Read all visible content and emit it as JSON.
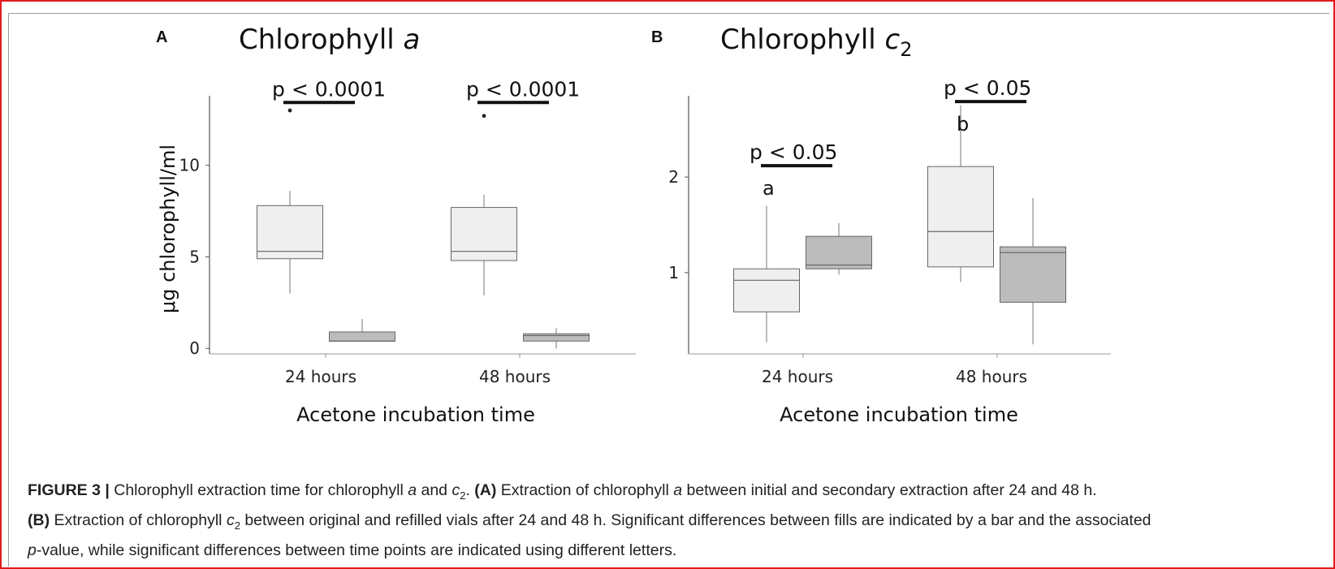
{
  "chart_data": [
    {
      "type": "box",
      "panel_label": "A",
      "title_prefix": "Chlorophyll ",
      "title_italic": "a",
      "title_sub": "",
      "xlabel": "Acetone incubation time",
      "ylabel": "μg chlorophyll/ml",
      "categories": [
        "24 hours",
        "48 hours"
      ],
      "yticks": [
        0,
        5,
        10
      ],
      "ylim": [
        -0.3,
        13.8
      ],
      "series": [
        {
          "name": "",
          "color": "#efefef",
          "boxes": [
            {
              "category": "24 hours",
              "whisker_low": 3.0,
              "q1": 4.9,
              "median": 5.3,
              "q3": 7.8,
              "whisker_high": 8.6,
              "outliers": [
                13.0
              ]
            },
            {
              "category": "48 hours",
              "whisker_low": 2.9,
              "q1": 4.8,
              "median": 5.3,
              "q3": 7.7,
              "whisker_high": 8.4,
              "outliers": [
                12.7
              ]
            }
          ]
        },
        {
          "name": "",
          "color": "#bcbcbc",
          "boxes": [
            {
              "category": "24 hours",
              "whisker_low": 0.4,
              "q1": 0.4,
              "median": 0.4,
              "q3": 0.9,
              "whisker_high": 1.6,
              "outliers": []
            },
            {
              "category": "48 hours",
              "whisker_low": 0.0,
              "q1": 0.4,
              "median": 0.7,
              "q3": 0.8,
              "whisker_high": 1.1,
              "outliers": []
            }
          ]
        }
      ],
      "annotations": [
        {
          "category": "24 hours",
          "text": "p < 0.0001",
          "value": 13.7,
          "letter": ""
        },
        {
          "category": "48 hours",
          "text": "p < 0.0001",
          "value": 13.7,
          "letter": ""
        }
      ]
    },
    {
      "type": "box",
      "panel_label": "B",
      "title_prefix": "Chlorophyll ",
      "title_italic": "c",
      "title_sub": "2",
      "xlabel": "Acetone incubation time",
      "ylabel": "",
      "categories": [
        "24 hours",
        "48 hours"
      ],
      "yticks": [
        1,
        2
      ],
      "ylim": [
        0.15,
        2.85
      ],
      "series": [
        {
          "name": "",
          "color": "#efefef",
          "boxes": [
            {
              "category": "24 hours",
              "whisker_low": 0.27,
              "q1": 0.59,
              "median": 0.92,
              "q3": 1.04,
              "whisker_high": 1.7,
              "outliers": []
            },
            {
              "category": "48 hours",
              "whisker_low": 0.9,
              "q1": 1.06,
              "median": 1.43,
              "q3": 2.11,
              "whisker_high": 2.75,
              "outliers": []
            }
          ]
        },
        {
          "name": "",
          "color": "#bcbcbc",
          "boxes": [
            {
              "category": "24 hours",
              "whisker_low": 0.98,
              "q1": 1.04,
              "median": 1.08,
              "q3": 1.38,
              "whisker_high": 1.52,
              "outliers": []
            },
            {
              "category": "48 hours",
              "whisker_low": 0.25,
              "q1": 0.69,
              "median": 1.21,
              "q3": 1.27,
              "whisker_high": 1.78,
              "outliers": []
            }
          ]
        }
      ],
      "annotations": [
        {
          "category": "24 hours",
          "text": "p < 0.05",
          "value": 2.17,
          "letter": "a"
        },
        {
          "category": "48 hours",
          "text": "p < 0.05",
          "value": 2.84,
          "letter": "b"
        }
      ]
    }
  ],
  "caption": {
    "figure_label": "FIGURE 3 |",
    "line1_a": " Chlorophyll extraction time for chlorophyll ",
    "line1_a_italic": "a",
    "line1_b": " and ",
    "line1_c_italic": "c",
    "line1_c_sub": "2",
    "line1_d": ". ",
    "line1_A": "(A)",
    "line1_e": " Extraction of chlorophyll ",
    "line1_e_italic": "a",
    "line1_f": " between initial and secondary extraction after 24 and 48 h.",
    "line2_B": "(B)",
    "line2_a": " Extraction of chlorophyll ",
    "line2_c_italic": "c",
    "line2_c_sub": "2",
    "line2_b": " between original and refilled vials after 24 and 48 h. Significant differences between fills are indicated by a bar and the associated",
    "line3_p_italic": "p",
    "line3_a": "-value, while significant differences between time points are indicated using different letters."
  }
}
